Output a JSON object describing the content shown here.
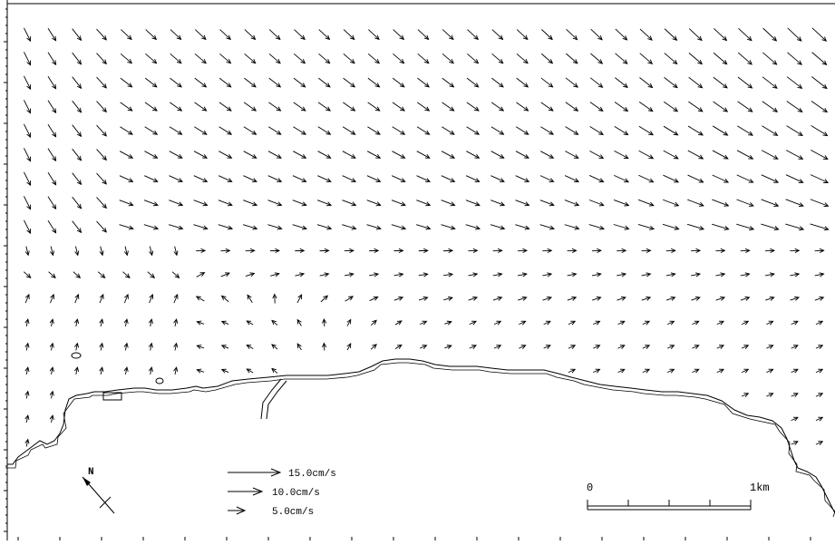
{
  "map": {
    "north_label": "N",
    "legend": {
      "items": [
        {
          "label": "15.0cm/s",
          "speed": 15.0
        },
        {
          "label": "10.0cm/s",
          "speed": 10.0
        },
        {
          "label": "5.0cm/s",
          "speed": 5.0
        }
      ]
    },
    "scale_bar": {
      "start_label": "0",
      "end_label": "1km"
    },
    "colors": {
      "arrow": "#000000",
      "coastline": "#000000",
      "background": "#ffffff"
    }
  }
}
